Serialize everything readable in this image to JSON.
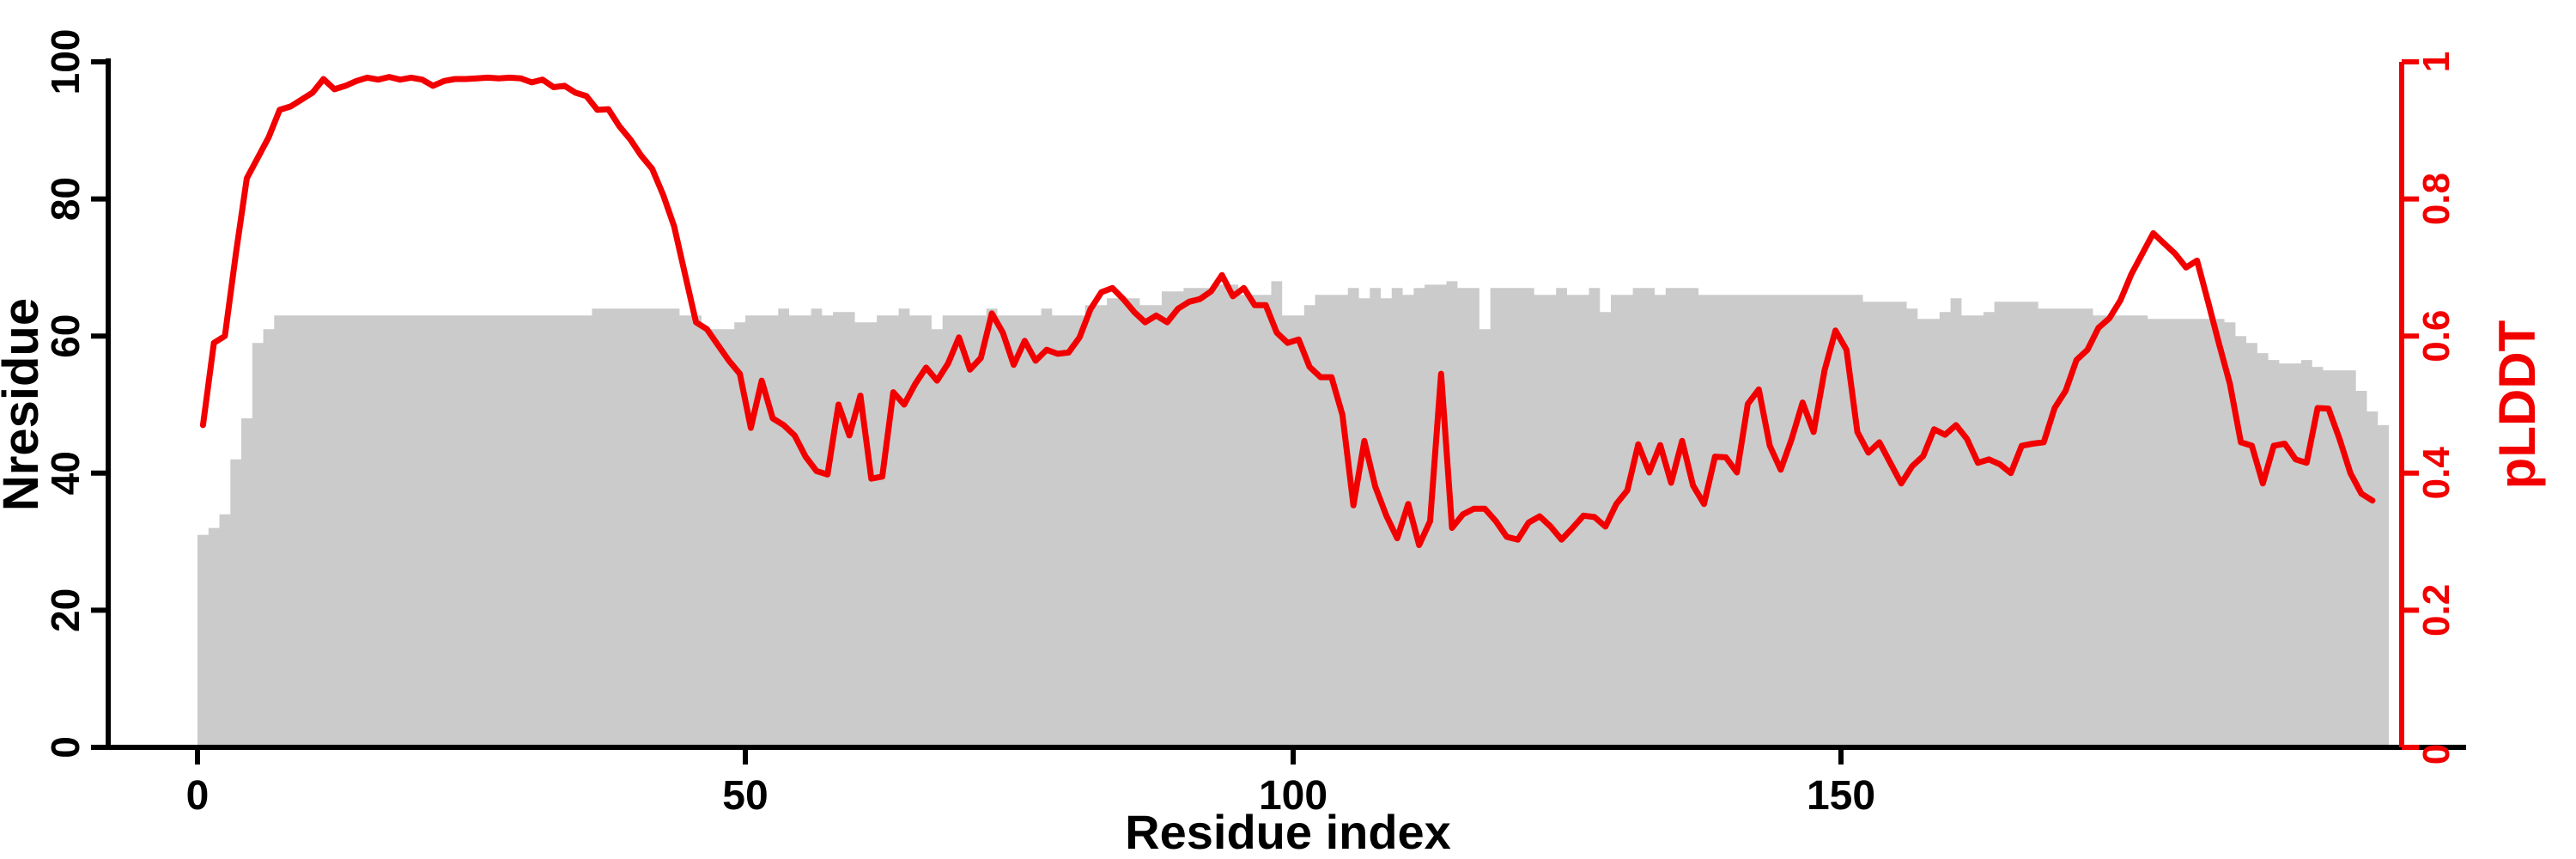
{
  "chart_data": {
    "type": "bar+line dual-axis",
    "title": "",
    "xlabel": "Residue index",
    "ylabel_left": "Nresidue",
    "ylabel_right": "pLDDT",
    "x_ticks": [
      0,
      50,
      100,
      150
    ],
    "x_tick_labels": [
      "0",
      "50",
      "100",
      "150"
    ],
    "y_left_ticks": [
      0,
      20,
      40,
      60,
      80,
      100
    ],
    "y_left_tick_labels": [
      "0",
      "20",
      "40",
      "60",
      "80",
      "100"
    ],
    "y_right_ticks": [
      0,
      0.2,
      0.4,
      0.6,
      0.8,
      1
    ],
    "y_right_tick_labels": [
      "0",
      "0.2",
      "0.4",
      "0.6",
      "0.8",
      "1"
    ],
    "xlim": [
      0,
      200
    ],
    "ylim_left": [
      0,
      100
    ],
    "ylim_right": [
      0,
      1
    ],
    "grid": false,
    "legend": "none",
    "colors": {
      "bars": "#cbcbcb",
      "line": "#f20000",
      "right_axis": "#f20000",
      "left_axis": "#000000",
      "background": "#ffffff"
    },
    "series": [
      {
        "name": "Nresidue",
        "type": "bar",
        "axis": "left",
        "values": [
          31,
          32,
          34,
          42,
          48,
          59,
          61,
          63,
          63,
          63,
          63,
          63,
          63,
          63,
          63,
          63,
          63,
          63,
          63,
          63,
          63,
          63,
          63,
          63,
          63,
          63,
          63,
          63,
          63,
          63,
          63,
          63,
          63,
          63,
          63,
          63,
          64,
          64,
          64,
          64,
          64,
          64,
          64,
          64,
          63,
          63,
          61,
          61,
          61,
          62,
          63,
          63,
          63,
          64,
          63,
          63,
          64,
          63,
          63.5,
          63.5,
          62,
          62,
          63,
          63,
          64,
          63,
          63,
          61,
          63,
          63,
          63,
          63,
          64,
          63,
          63,
          63,
          63,
          64,
          63,
          63,
          63,
          64.5,
          64.5,
          65.5,
          65.5,
          65.5,
          64.5,
          64.5,
          66.5,
          66.5,
          67,
          67,
          67,
          67.5,
          67.5,
          66,
          66,
          66,
          68,
          63,
          63,
          64.5,
          66,
          66,
          66,
          67,
          65.5,
          67,
          65.5,
          67,
          66,
          67,
          67.5,
          67.5,
          68,
          67,
          67,
          61,
          67,
          67,
          67,
          67,
          66,
          66,
          67,
          66,
          66,
          67,
          63.5,
          66,
          66,
          67,
          67,
          66,
          67,
          67,
          67,
          66,
          66,
          66,
          66,
          66,
          66,
          66,
          66,
          66,
          66,
          66,
          66,
          66,
          66,
          66,
          65,
          65,
          65,
          65,
          64,
          62.5,
          62.5,
          63.5,
          65.5,
          63,
          63,
          63.5,
          65,
          65,
          65,
          65,
          64,
          64,
          64,
          64,
          64,
          63,
          63,
          63,
          63,
          63,
          62.5,
          62.5,
          62.5,
          62.5,
          62.5,
          62.5,
          62.5,
          62,
          60,
          59,
          57.5,
          56.5,
          56,
          56,
          56.5,
          55.5,
          55,
          55,
          55,
          52,
          49,
          47
        ]
      },
      {
        "name": "pLDDT",
        "type": "line",
        "axis": "right",
        "values": [
          0.47,
          0.59,
          0.6,
          0.72,
          0.83,
          0.86,
          0.89,
          0.93,
          0.935,
          0.945,
          0.955,
          0.975,
          0.96,
          0.965,
          0.972,
          0.977,
          0.974,
          0.978,
          0.974,
          0.977,
          0.974,
          0.965,
          0.972,
          0.975,
          0.975,
          0.976,
          0.977,
          0.976,
          0.977,
          0.976,
          0.97,
          0.974,
          0.963,
          0.965,
          0.955,
          0.95,
          0.93,
          0.931,
          0.906,
          0.887,
          0.863,
          0.844,
          0.806,
          0.76,
          0.69,
          0.62,
          0.61,
          0.587,
          0.564,
          0.545,
          0.466,
          0.535,
          0.48,
          0.47,
          0.455,
          0.424,
          0.403,
          0.398,
          0.5,
          0.455,
          0.513,
          0.392,
          0.395,
          0.518,
          0.5,
          0.53,
          0.554,
          0.535,
          0.56,
          0.598,
          0.551,
          0.568,
          0.633,
          0.605,
          0.558,
          0.593,
          0.564,
          0.58,
          0.574,
          0.576,
          0.598,
          0.639,
          0.664,
          0.67,
          0.654,
          0.635,
          0.62,
          0.63,
          0.62,
          0.64,
          0.65,
          0.654,
          0.665,
          0.689,
          0.658,
          0.67,
          0.645,
          0.645,
          0.605,
          0.59,
          0.595,
          0.555,
          0.54,
          0.54,
          0.485,
          0.353,
          0.447,
          0.38,
          0.338,
          0.305,
          0.355,
          0.295,
          0.33,
          0.545,
          0.32,
          0.34,
          0.348,
          0.348,
          0.33,
          0.307,
          0.303,
          0.328,
          0.337,
          0.322,
          0.303,
          0.32,
          0.338,
          0.336,
          0.322,
          0.355,
          0.375,
          0.442,
          0.401,
          0.441,
          0.386,
          0.447,
          0.382,
          0.355,
          0.424,
          0.423,
          0.401,
          0.501,
          0.522,
          0.44,
          0.405,
          0.45,
          0.503,
          0.46,
          0.55,
          0.608,
          0.58,
          0.46,
          0.43,
          0.445,
          0.415,
          0.385,
          0.41,
          0.425,
          0.464,
          0.456,
          0.47,
          0.45,
          0.415,
          0.42,
          0.413,
          0.4,
          0.44,
          0.443,
          0.445,
          0.495,
          0.52,
          0.565,
          0.58,
          0.612,
          0.626,
          0.652,
          0.69,
          0.72,
          0.75,
          0.735,
          0.72,
          0.7,
          0.71,
          0.65,
          0.589,
          0.53,
          0.445,
          0.44,
          0.385,
          0.44,
          0.443,
          0.42,
          0.415,
          0.495,
          0.494,
          0.45,
          0.4,
          0.37,
          0.36,
          null
        ]
      }
    ]
  }
}
